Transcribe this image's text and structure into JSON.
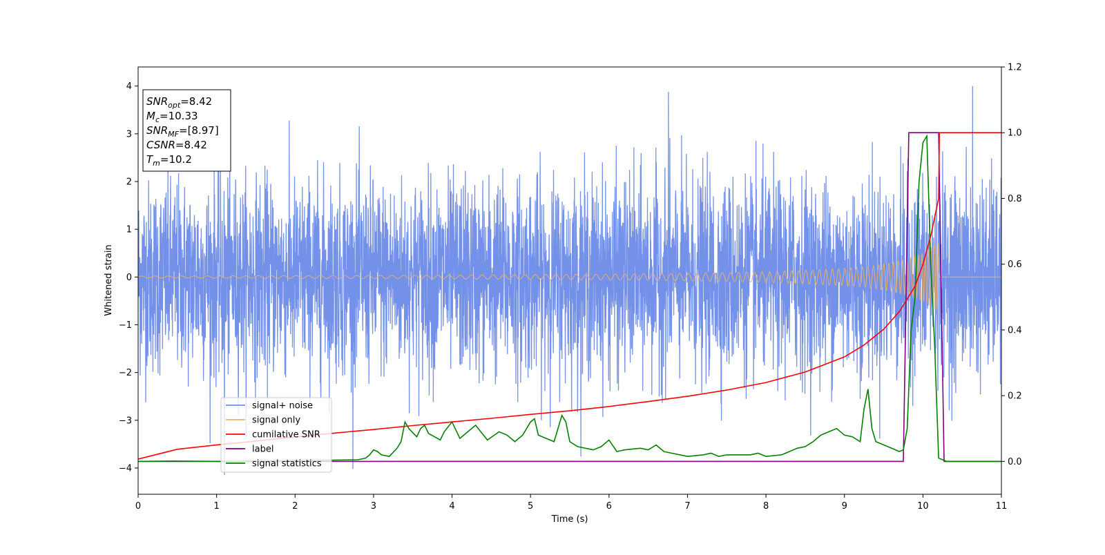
{
  "chart_data": {
    "type": "line",
    "title": "",
    "xlabel": "Time (s)",
    "ylabel": "Whitened strain",
    "xlim": [
      0,
      11
    ],
    "ylim": [
      -4.55,
      4.4
    ],
    "ylim_right": [
      -0.1,
      1.2
    ],
    "x_ticks": [
      0,
      1,
      2,
      3,
      4,
      5,
      6,
      7,
      8,
      9,
      10,
      11
    ],
    "y_ticks": [
      -4,
      -3,
      -2,
      -1,
      0,
      1,
      2,
      3,
      4
    ],
    "y_ticks_right": [
      0.0,
      0.2,
      0.4,
      0.6,
      0.8,
      1.0,
      1.2
    ],
    "grid": false,
    "legend_position": "lower-left",
    "legend": [
      "signal+ noise",
      "signal only",
      "cumilative SNR",
      "label",
      "signal statistics"
    ],
    "info_box": [
      {
        "label": "SNR",
        "sub": "opt",
        "value": "=8.42"
      },
      {
        "label": "M",
        "sub": "c",
        "value": "=10.33"
      },
      {
        "label": "SNR",
        "sub": "MF",
        "value": "=[8.97]"
      },
      {
        "label": "CSNR",
        "sub": "",
        "value": "=8.42"
      },
      {
        "label": "T",
        "sub": "m",
        "value": "=10.2"
      }
    ],
    "series": [
      {
        "name": "signal+ noise",
        "color": "#6d8be8",
        "axis": "left",
        "kind": "noise",
        "x_range": [
          0,
          11
        ],
        "std": 1.0,
        "extremes": [
          4.0,
          -4.15
        ]
      },
      {
        "name": "signal only",
        "color": "#f0b260",
        "axis": "left",
        "kind": "chirp_envelope",
        "x": [
          0,
          2,
          4,
          6,
          7,
          8,
          8.5,
          9,
          9.3,
          9.6,
          9.8,
          10.0,
          10.1,
          10.2,
          10.21,
          11
        ],
        "amplitude": [
          0.02,
          0.03,
          0.04,
          0.06,
          0.08,
          0.11,
          0.14,
          0.18,
          0.22,
          0.3,
          0.38,
          0.5,
          0.62,
          0.72,
          0.0,
          0.0
        ]
      },
      {
        "name": "cumilative SNR",
        "color": "#ff0000",
        "axis": "right",
        "x": [
          0,
          0.5,
          1,
          1.5,
          2,
          2.5,
          3,
          3.5,
          4,
          4.5,
          5,
          5.5,
          6,
          6.5,
          7,
          7.5,
          8,
          8.5,
          9,
          9.25,
          9.5,
          9.7,
          9.9,
          10.0,
          10.1,
          10.2,
          10.21,
          11
        ],
        "y": [
          0.007,
          0.037,
          0.05,
          0.062,
          0.074,
          0.086,
          0.097,
          0.109,
          0.12,
          0.131,
          0.143,
          0.154,
          0.167,
          0.182,
          0.198,
          0.217,
          0.24,
          0.272,
          0.318,
          0.354,
          0.402,
          0.456,
          0.533,
          0.6,
          0.686,
          0.8,
          1.0,
          1.0
        ]
      },
      {
        "name": "label",
        "color": "#800080",
        "axis": "right",
        "x": [
          0,
          9.75,
          9.82,
          10.2,
          10.27,
          11
        ],
        "y": [
          0.0,
          0.0,
          1.0,
          1.0,
          0.0,
          0.0
        ]
      },
      {
        "name": "signal statistics",
        "color": "#008000",
        "axis": "right",
        "x": [
          0,
          0.4,
          1.1,
          2.5,
          2.8,
          2.9,
          2.95,
          3.0,
          3.05,
          3.1,
          3.2,
          3.3,
          3.35,
          3.4,
          3.45,
          3.55,
          3.6,
          3.65,
          3.7,
          3.85,
          3.9,
          4.0,
          4.1,
          4.2,
          4.3,
          4.4,
          4.45,
          4.6,
          4.7,
          4.8,
          4.9,
          5.0,
          5.05,
          5.1,
          5.2,
          5.3,
          5.4,
          5.45,
          5.5,
          5.6,
          5.8,
          5.9,
          6.0,
          6.1,
          6.2,
          6.4,
          6.5,
          6.6,
          6.7,
          6.8,
          7.0,
          7.2,
          7.3,
          7.4,
          7.5,
          7.8,
          7.9,
          8.0,
          8.2,
          8.4,
          8.5,
          8.6,
          8.7,
          8.8,
          8.9,
          9.0,
          9.1,
          9.2,
          9.25,
          9.3,
          9.35,
          9.4,
          9.6,
          9.7,
          9.75,
          9.8,
          9.85,
          9.9,
          9.95,
          10.0,
          10.05,
          10.1,
          10.15,
          10.2,
          10.25,
          10.3,
          11
        ],
        "y": [
          0.0,
          0.001,
          0.0,
          0.004,
          0.005,
          0.01,
          0.02,
          0.035,
          0.03,
          0.02,
          0.015,
          0.04,
          0.06,
          0.12,
          0.1,
          0.075,
          0.1,
          0.11,
          0.085,
          0.065,
          0.09,
          0.12,
          0.07,
          0.09,
          0.11,
          0.08,
          0.065,
          0.09,
          0.08,
          0.06,
          0.08,
          0.12,
          0.13,
          0.08,
          0.07,
          0.06,
          0.14,
          0.12,
          0.06,
          0.045,
          0.035,
          0.045,
          0.065,
          0.03,
          0.035,
          0.04,
          0.035,
          0.05,
          0.03,
          0.025,
          0.015,
          0.02,
          0.025,
          0.015,
          0.02,
          0.02,
          0.025,
          0.015,
          0.02,
          0.04,
          0.045,
          0.06,
          0.08,
          0.09,
          0.1,
          0.08,
          0.075,
          0.06,
          0.16,
          0.22,
          0.1,
          0.06,
          0.04,
          0.03,
          0.035,
          0.1,
          0.4,
          0.5,
          0.85,
          0.97,
          0.99,
          0.6,
          0.35,
          0.01,
          0.005,
          0.0,
          0.0
        ]
      }
    ]
  }
}
